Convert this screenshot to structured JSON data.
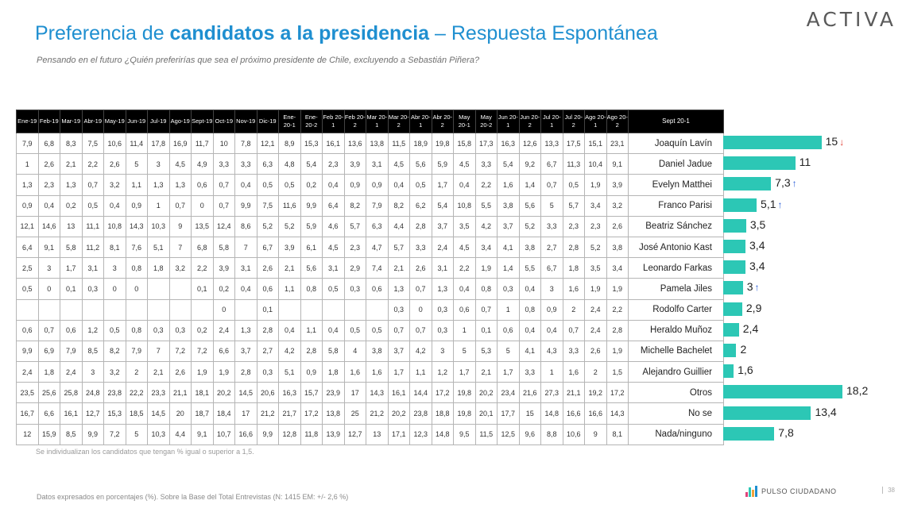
{
  "brand": "ACTIVA",
  "title": {
    "pre": "Preferencia de ",
    "bold": "candidatos a la presidencia",
    "post": " – Respuesta Espontánea"
  },
  "subtitle": "Pensando en el futuro ¿Quién preferirías que sea el próximo presidente de Chile, excluyendo a Sebastián Piñera?",
  "note": "Se individualizan los candidatos que tengan % igual o superior a 1,5.",
  "footer": {
    "text": "Datos expresados en porcentajes (%). Sobre la Base del Total Entrevistas (N: 1415 EM: +/- 2,6 %)",
    "brand": "PULSO CIUDADANO",
    "page": "38"
  },
  "colors": {
    "title": "#1f8fd0",
    "bar": "#2cc7b5",
    "arrow_down": "#e03a2f",
    "arrow_up": "#2b5fd9"
  },
  "chart_data": {
    "type": "bar",
    "orientation": "horizontal",
    "category_header": "Sept 20-1",
    "periods": [
      "Ene-19",
      "Feb-19",
      "Mar-19",
      "Abr-19",
      "May-19",
      "Jun-19",
      "Jul-19",
      "Ago-19",
      "Sept-19",
      "Oct-19",
      "Nov-19",
      "Dic-19",
      "Ene-20-1",
      "Ene-20-2",
      "Feb 20-1",
      "Feb 20-2",
      "Mar 20-1",
      "Mar 20-2",
      "Abr 20-1",
      "Abr 20-2",
      "May 20-1",
      "May 20-2",
      "Jun 20-1",
      "Jun 20-2",
      "Jul 20-1",
      "Jul 20-2",
      "Ago 20-1",
      "Ago 20-2"
    ],
    "categories": [
      "Joaquín Lavín",
      "Daniel Jadue",
      "Evelyn Matthei",
      "Franco Parisi",
      "Beatriz Sánchez",
      "José Antonio Kast",
      "Leonardo Farkas",
      "Pamela Jiles",
      "Rodolfo Carter",
      "Heraldo Muñoz",
      "Michelle Bachelet",
      "Alejandro Guillier",
      "Otros",
      "No se",
      "Nada/ninguno"
    ],
    "values": [
      15,
      11,
      7.3,
      5.1,
      3.5,
      3.4,
      3.4,
      3,
      2.9,
      2.4,
      2,
      1.6,
      18.2,
      13.4,
      7.8
    ],
    "value_labels": [
      "15",
      "11",
      "7,3",
      "5,1",
      "3,5",
      "3,4",
      "3,4",
      "3",
      "2,9",
      "2,4",
      "2",
      "1,6",
      "18,2",
      "13,4",
      "7,8"
    ],
    "trend": [
      "down",
      "",
      "up",
      "up",
      "",
      "",
      "",
      "up",
      "",
      "",
      "",
      "",
      "",
      "",
      ""
    ],
    "xlim": [
      0,
      20
    ],
    "history": [
      [
        "7,9",
        "6,8",
        "8,3",
        "7,5",
        "10,6",
        "11,4",
        "17,8",
        "16,9",
        "11,7",
        "10",
        "7,8",
        "12,1",
        "8,9",
        "15,3",
        "16,1",
        "13,6",
        "13,8",
        "11,5",
        "18,9",
        "19,8",
        "15,8",
        "17,3",
        "16,3",
        "12,6",
        "13,3",
        "17,5",
        "15,1",
        "23,1"
      ],
      [
        "1",
        "2,6",
        "2,1",
        "2,2",
        "2,6",
        "5",
        "3",
        "4,5",
        "4,9",
        "3,3",
        "3,3",
        "6,3",
        "4,8",
        "5,4",
        "2,3",
        "3,9",
        "3,1",
        "4,5",
        "5,6",
        "5,9",
        "4,5",
        "3,3",
        "5,4",
        "9,2",
        "6,7",
        "11,3",
        "10,4",
        "9,1"
      ],
      [
        "1,3",
        "2,3",
        "1,3",
        "0,7",
        "3,2",
        "1,1",
        "1,3",
        "1,3",
        "0,6",
        "0,7",
        "0,4",
        "0,5",
        "0,5",
        "0,2",
        "0,4",
        "0,9",
        "0,9",
        "0,4",
        "0,5",
        "1,7",
        "0,4",
        "2,2",
        "1,6",
        "1,4",
        "0,7",
        "0,5",
        "1,9",
        "3,9"
      ],
      [
        "0,9",
        "0,4",
        "0,2",
        "0,5",
        "0,4",
        "0,9",
        "1",
        "0,7",
        "0",
        "0,7",
        "9,9",
        "7,5",
        "11,6",
        "9,9",
        "6,4",
        "8,2",
        "7,9",
        "8,2",
        "6,2",
        "5,4",
        "10,8",
        "5,5",
        "3,8",
        "5,6",
        "5",
        "5,7",
        "3,4",
        "3,2"
      ],
      [
        "12,1",
        "14,6",
        "13",
        "11,1",
        "10,8",
        "14,3",
        "10,3",
        "9",
        "13,5",
        "12,4",
        "8,6",
        "5,2",
        "5,2",
        "5,9",
        "4,6",
        "5,7",
        "6,3",
        "4,4",
        "2,8",
        "3,7",
        "3,5",
        "4,2",
        "3,7",
        "5,2",
        "3,3",
        "2,3",
        "2,3",
        "2,6"
      ],
      [
        "6,4",
        "9,1",
        "5,8",
        "11,2",
        "8,1",
        "7,6",
        "5,1",
        "7",
        "6,8",
        "5,8",
        "7",
        "6,7",
        "3,9",
        "6,1",
        "4,5",
        "2,3",
        "4,7",
        "5,7",
        "3,3",
        "2,4",
        "4,5",
        "3,4",
        "4,1",
        "3,8",
        "2,7",
        "2,8",
        "5,2",
        "3,8"
      ],
      [
        "2,5",
        "3",
        "1,7",
        "3,1",
        "3",
        "0,8",
        "1,8",
        "3,2",
        "2,2",
        "3,9",
        "3,1",
        "2,6",
        "2,1",
        "5,6",
        "3,1",
        "2,9",
        "7,4",
        "2,1",
        "2,6",
        "3,1",
        "2,2",
        "1,9",
        "1,4",
        "5,5",
        "6,7",
        "1,8",
        "3,5",
        "3,4"
      ],
      [
        "0,5",
        "0",
        "0,1",
        "0,3",
        "0",
        "0",
        "",
        "",
        "0,1",
        "0,2",
        "0,4",
        "0,6",
        "1,1",
        "0,8",
        "0,5",
        "0,3",
        "0,6",
        "1,3",
        "0,7",
        "1,3",
        "0,4",
        "0,8",
        "0,3",
        "0,4",
        "3",
        "1,6",
        "1,9",
        "1,9"
      ],
      [
        "",
        "",
        "",
        "",
        "",
        "",
        "",
        "",
        "",
        "0",
        "",
        "0,1",
        "",
        "",
        "",
        "",
        "",
        "0,3",
        "0",
        "0,3",
        "0,6",
        "0,7",
        "1",
        "0,8",
        "0,9",
        "2",
        "2,4",
        "2,2"
      ],
      [
        "0,6",
        "0,7",
        "0,6",
        "1,2",
        "0,5",
        "0,8",
        "0,3",
        "0,3",
        "0,2",
        "2,4",
        "1,3",
        "2,8",
        "0,4",
        "1,1",
        "0,4",
        "0,5",
        "0,5",
        "0,7",
        "0,7",
        "0,3",
        "1",
        "0,1",
        "0,6",
        "0,4",
        "0,4",
        "0,7",
        "2,4",
        "2,8"
      ],
      [
        "9,9",
        "6,9",
        "7,9",
        "8,5",
        "8,2",
        "7,9",
        "7",
        "7,2",
        "7,2",
        "6,6",
        "3,7",
        "2,7",
        "4,2",
        "2,8",
        "5,8",
        "4",
        "3,8",
        "3,7",
        "4,2",
        "3",
        "5",
        "5,3",
        "5",
        "4,1",
        "4,3",
        "3,3",
        "2,6",
        "1,9"
      ],
      [
        "2,4",
        "1,8",
        "2,4",
        "3",
        "3,2",
        "2",
        "2,1",
        "2,6",
        "1,9",
        "1,9",
        "2,8",
        "0,3",
        "5,1",
        "0,9",
        "1,8",
        "1,6",
        "1,6",
        "1,7",
        "1,1",
        "1,2",
        "1,7",
        "2,1",
        "1,7",
        "3,3",
        "1",
        "1,6",
        "2",
        "1,5"
      ],
      [
        "23,5",
        "25,6",
        "25,8",
        "24,8",
        "23,8",
        "22,2",
        "23,3",
        "21,1",
        "18,1",
        "20,2",
        "14,5",
        "20,6",
        "16,3",
        "15,7",
        "23,9",
        "17",
        "14,3",
        "16,1",
        "14,4",
        "17,2",
        "19,8",
        "20,2",
        "23,4",
        "21,6",
        "27,3",
        "21,1",
        "19,2",
        "17,2"
      ],
      [
        "16,7",
        "6,6",
        "16,1",
        "12,7",
        "15,3",
        "18,5",
        "14,5",
        "20",
        "18,7",
        "18,4",
        "17",
        "21,2",
        "21,7",
        "17,2",
        "13,8",
        "25",
        "21,2",
        "20,2",
        "23,8",
        "18,8",
        "19,8",
        "20,1",
        "17,7",
        "15",
        "14,8",
        "16,6",
        "16,6",
        "14,3"
      ],
      [
        "12",
        "15,9",
        "8,5",
        "9,9",
        "7,2",
        "5",
        "10,3",
        "4,4",
        "9,1",
        "10,7",
        "16,6",
        "9,9",
        "12,8",
        "11,8",
        "13,9",
        "12,7",
        "13",
        "17,1",
        "12,3",
        "14,8",
        "9,5",
        "11,5",
        "12,5",
        "9,6",
        "8,8",
        "10,6",
        "9",
        "8,1"
      ]
    ]
  }
}
